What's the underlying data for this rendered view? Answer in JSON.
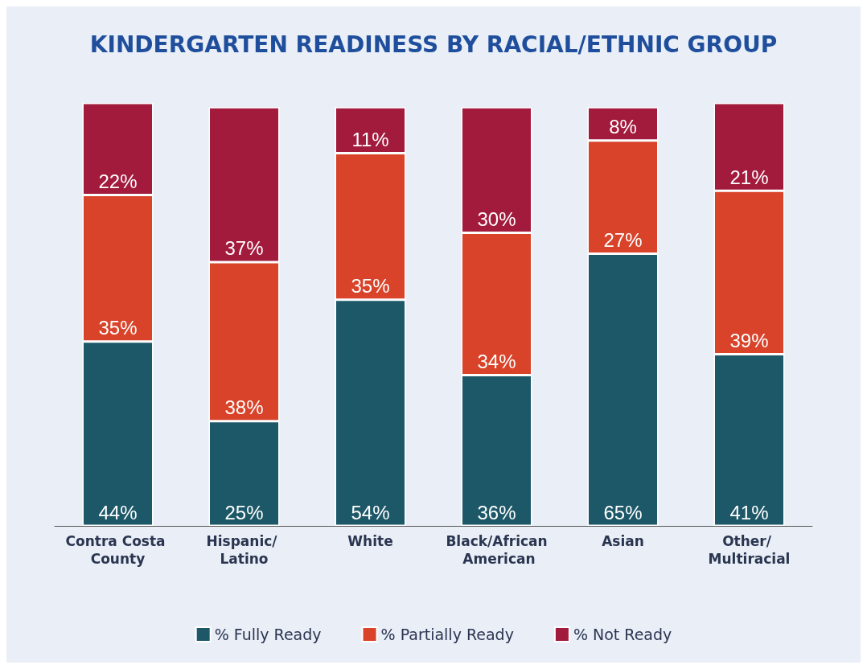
{
  "chart_data": {
    "type": "bar",
    "title": "KINDERGARTEN READINESS BY RACIAL/ETHNIC GROUP",
    "stacked": true,
    "categories": [
      "Contra Costa County",
      "Hispanic/ Latino",
      "White",
      "Black/African American",
      "Asian",
      "Other/ Multiracial"
    ],
    "series": [
      {
        "name": "% Fully Ready",
        "color": "#1d5868",
        "values": [
          44,
          25,
          54,
          36,
          65,
          41
        ],
        "value_labels": [
          "44%",
          "25%",
          "54%",
          "36%",
          "65%",
          "41%"
        ]
      },
      {
        "name": "% Partially Ready",
        "color": "#d8432a",
        "values": [
          35,
          38,
          35,
          34,
          27,
          39
        ],
        "value_labels": [
          "35%",
          "38%",
          "35%",
          "34%",
          "27%",
          "39%"
        ]
      },
      {
        "name": "% Not Ready",
        "color": "#a21a3c",
        "values": [
          22,
          37,
          11,
          30,
          8,
          21
        ],
        "value_labels": [
          "22%",
          "37%",
          "11%",
          "30%",
          "8%",
          "21%"
        ]
      }
    ],
    "legend": "bottom"
  }
}
